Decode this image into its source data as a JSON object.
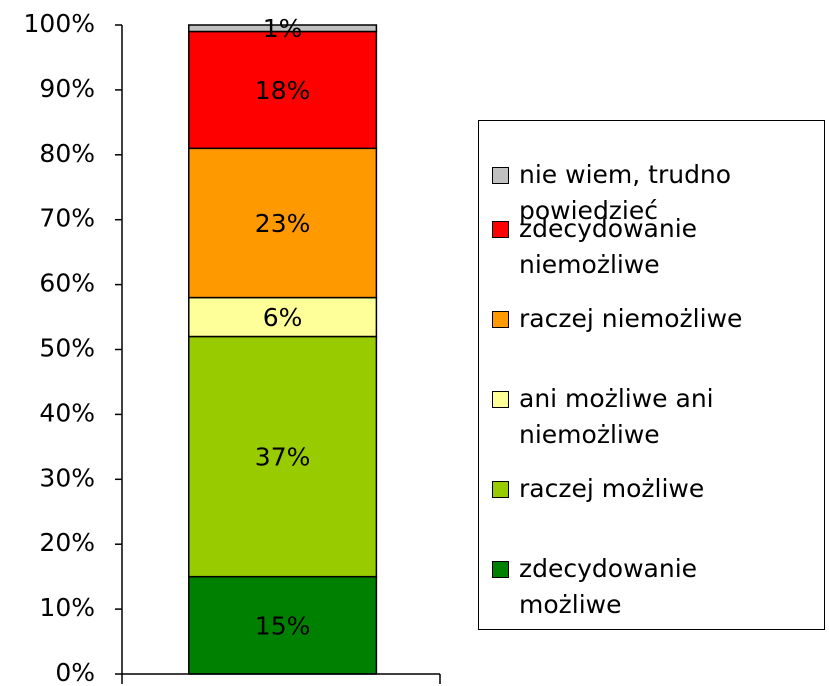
{
  "chart_data": {
    "type": "stacked_bar",
    "categories": [
      null
    ],
    "series": [
      {
        "name": "zdecydowanie możliwe",
        "color": "#008000",
        "values": [
          15
        ],
        "value_labels": [
          "15%"
        ]
      },
      {
        "name": "raczej możliwe",
        "color": "#99cc00",
        "values": [
          37
        ],
        "value_labels": [
          "37%"
        ]
      },
      {
        "name": "ani możliwe ani niemożliwe",
        "color": "#ffff99",
        "values": [
          6
        ],
        "value_labels": [
          "6%"
        ]
      },
      {
        "name": "raczej niemożliwe",
        "color": "#ff9900",
        "values": [
          23
        ],
        "value_labels": [
          "23%"
        ]
      },
      {
        "name": "zdecydowanie niemożliwe",
        "color": "#ff0000",
        "values": [
          18
        ],
        "value_labels": [
          "18%"
        ]
      },
      {
        "name": "nie wiem, trudno powiedzieć",
        "color": "#c0c0c0",
        "values": [
          1
        ],
        "value_labels": [
          "1%"
        ]
      }
    ],
    "ylim": [
      0,
      100
    ],
    "yticks": [
      {
        "value": 0,
        "label": "0%"
      },
      {
        "value": 10,
        "label": "10%"
      },
      {
        "value": 20,
        "label": "20%"
      },
      {
        "value": 30,
        "label": "30%"
      },
      {
        "value": 40,
        "label": "40%"
      },
      {
        "value": 50,
        "label": "50%"
      },
      {
        "value": 60,
        "label": "60%"
      },
      {
        "value": 70,
        "label": "70%"
      },
      {
        "value": 80,
        "label": "80%"
      },
      {
        "value": 90,
        "label": "90%"
      },
      {
        "value": 100,
        "label": "100%"
      }
    ],
    "legend": "right"
  }
}
